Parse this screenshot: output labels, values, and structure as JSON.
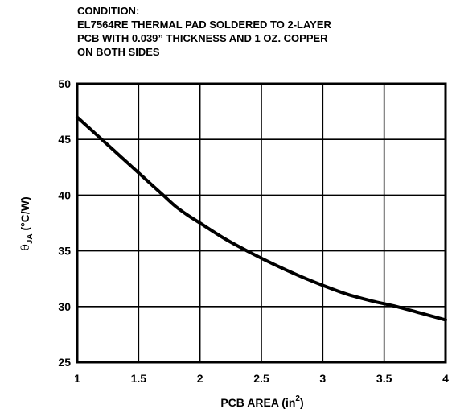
{
  "chart_data": {
    "type": "line",
    "title_lines": [
      "CONDITION:",
      "EL7564RE THERMAL PAD SOLDERED TO 2-LAYER",
      "PCB WITH 0.039” THICKNESS AND 1 OZ. COPPER",
      "ON BOTH SIDES"
    ],
    "xlabel": {
      "main": "PCB AREA (in",
      "sup": "2",
      "end": ")"
    },
    "ylabel": {
      "symbol": "θ",
      "sub": "JA",
      "end": " (°C/W)"
    },
    "xlim": [
      1,
      4
    ],
    "ylim": [
      25,
      50
    ],
    "x_ticks": [
      1,
      1.5,
      2,
      2.5,
      3,
      3.5,
      4
    ],
    "x_tick_labels": [
      "1",
      "1.5",
      "2",
      "2.5",
      "3",
      "3.5",
      "4"
    ],
    "y_ticks": [
      25,
      30,
      35,
      40,
      45,
      50
    ],
    "y_tick_labels": [
      "25",
      "30",
      "35",
      "40",
      "45",
      "50"
    ],
    "grid": true,
    "series": [
      {
        "color": "#000000",
        "x": [
          1.0,
          1.1,
          1.2,
          1.3,
          1.4,
          1.5,
          1.6,
          1.7,
          1.8,
          1.9,
          2.0,
          2.2,
          2.4,
          2.6,
          2.8,
          3.0,
          3.2,
          3.4,
          3.6,
          3.8,
          4.0
        ],
        "y": [
          47.0,
          46.0,
          45.0,
          44.0,
          43.0,
          42.0,
          41.0,
          40.0,
          39.0,
          38.2,
          37.5,
          36.1,
          34.9,
          33.8,
          32.8,
          31.9,
          31.1,
          30.5,
          30.0,
          29.4,
          28.8
        ]
      }
    ]
  }
}
